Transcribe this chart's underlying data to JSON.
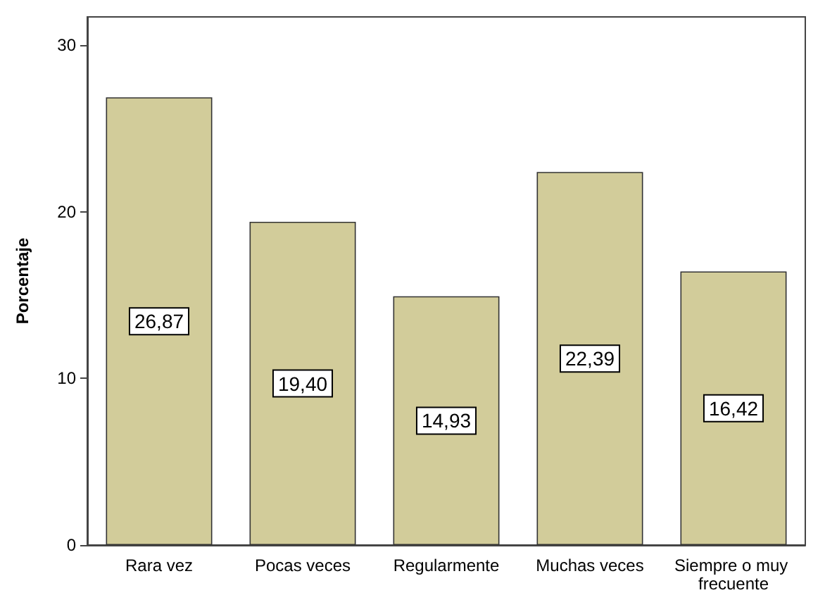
{
  "chart_data": {
    "type": "bar",
    "ylabel": "Porcentaje",
    "categories": [
      "Rara vez",
      "Pocas veces",
      "Regularmente",
      "Muchas veces",
      "Siempre o muy frecuente"
    ],
    "values": [
      26.87,
      19.4,
      14.93,
      22.39,
      16.42
    ],
    "value_labels": [
      "26,87",
      "19,40",
      "14,93",
      "22,39",
      "16,42"
    ],
    "color": "#d2cc9a",
    "ylim": [
      0,
      31.7
    ],
    "yticks": [
      0,
      10,
      20,
      30
    ],
    "grid": false
  }
}
